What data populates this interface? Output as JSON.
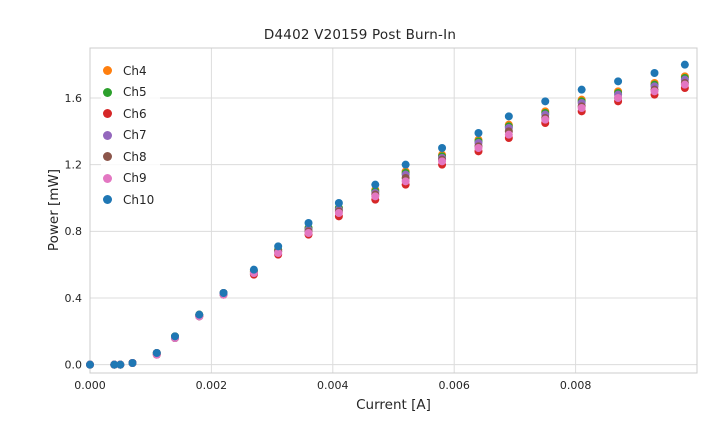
{
  "title": "D4402 V20159 Post Burn-In",
  "chart_data": {
    "type": "scatter",
    "title": "D4402 V20159 Post Burn-In",
    "xlabel": "Current [A]",
    "ylabel": "Power [mW]",
    "xlim": [
      0,
      0.01
    ],
    "ylim": [
      -0.05,
      1.9
    ],
    "grid": true,
    "legend_position": "upper left",
    "xticks": {
      "values": [
        0,
        0.002,
        0.004,
        0.006,
        0.008
      ],
      "labels": [
        "0.000",
        "0.002",
        "0.004",
        "0.006",
        "0.008"
      ]
    },
    "yticks": {
      "values": [
        0.0,
        0.4,
        0.8,
        1.2,
        1.6
      ],
      "labels": [
        "0.0",
        "0.4",
        "0.8",
        "1.2",
        "1.6"
      ]
    },
    "x": [
      0.0,
      0.0004,
      0.0005,
      0.0007,
      0.0011,
      0.0014,
      0.0018,
      0.0022,
      0.0027,
      0.0031,
      0.0036,
      0.0041,
      0.0047,
      0.0052,
      0.0058,
      0.0064,
      0.0069,
      0.0075,
      0.0081,
      0.0087,
      0.0093,
      0.0098
    ],
    "series": [
      {
        "name": "Ch4",
        "color": "#ff7f0e",
        "values": [
          0.0,
          0.0,
          0.0,
          0.01,
          0.07,
          0.17,
          0.3,
          0.43,
          0.56,
          0.69,
          0.82,
          0.94,
          1.05,
          1.16,
          1.26,
          1.35,
          1.44,
          1.52,
          1.59,
          1.64,
          1.69,
          1.73
        ]
      },
      {
        "name": "Ch5",
        "color": "#2ca02c",
        "values": [
          0.0,
          0.0,
          0.0,
          0.01,
          0.07,
          0.17,
          0.3,
          0.43,
          0.56,
          0.69,
          0.82,
          0.94,
          1.04,
          1.15,
          1.25,
          1.34,
          1.43,
          1.51,
          1.58,
          1.63,
          1.68,
          1.72
        ]
      },
      {
        "name": "Ch6",
        "color": "#d62728",
        "values": [
          0.0,
          0.0,
          0.0,
          0.01,
          0.06,
          0.16,
          0.29,
          0.42,
          0.54,
          0.66,
          0.78,
          0.89,
          0.99,
          1.08,
          1.2,
          1.28,
          1.36,
          1.45,
          1.52,
          1.58,
          1.62,
          1.66
        ]
      },
      {
        "name": "Ch7",
        "color": "#9467bd",
        "values": [
          0.0,
          0.0,
          0.0,
          0.01,
          0.07,
          0.16,
          0.29,
          0.43,
          0.55,
          0.68,
          0.81,
          0.93,
          1.03,
          1.14,
          1.24,
          1.33,
          1.42,
          1.5,
          1.57,
          1.62,
          1.67,
          1.71
        ]
      },
      {
        "name": "Ch8",
        "color": "#8c564b",
        "values": [
          0.0,
          0.0,
          0.0,
          0.01,
          0.06,
          0.16,
          0.29,
          0.42,
          0.55,
          0.68,
          0.8,
          0.92,
          1.02,
          1.12,
          1.23,
          1.31,
          1.4,
          1.48,
          1.55,
          1.6,
          1.65,
          1.69
        ]
      },
      {
        "name": "Ch9",
        "color": "#e377c2",
        "values": [
          0.0,
          0.0,
          0.0,
          0.01,
          0.06,
          0.16,
          0.29,
          0.42,
          0.55,
          0.67,
          0.79,
          0.91,
          1.01,
          1.1,
          1.22,
          1.3,
          1.38,
          1.47,
          1.54,
          1.6,
          1.64,
          1.68
        ]
      },
      {
        "name": "Ch10",
        "color": "#1f77b4",
        "values": [
          0.0,
          0.0,
          0.0,
          0.01,
          0.07,
          0.17,
          0.3,
          0.43,
          0.57,
          0.71,
          0.85,
          0.97,
          1.08,
          1.2,
          1.3,
          1.39,
          1.49,
          1.58,
          1.65,
          1.7,
          1.75,
          1.8
        ]
      }
    ],
    "style": {
      "grid_color": "#dcdcdc",
      "border_color": "#cccccc",
      "text_color": "#262626",
      "marker_radius": 4
    }
  }
}
